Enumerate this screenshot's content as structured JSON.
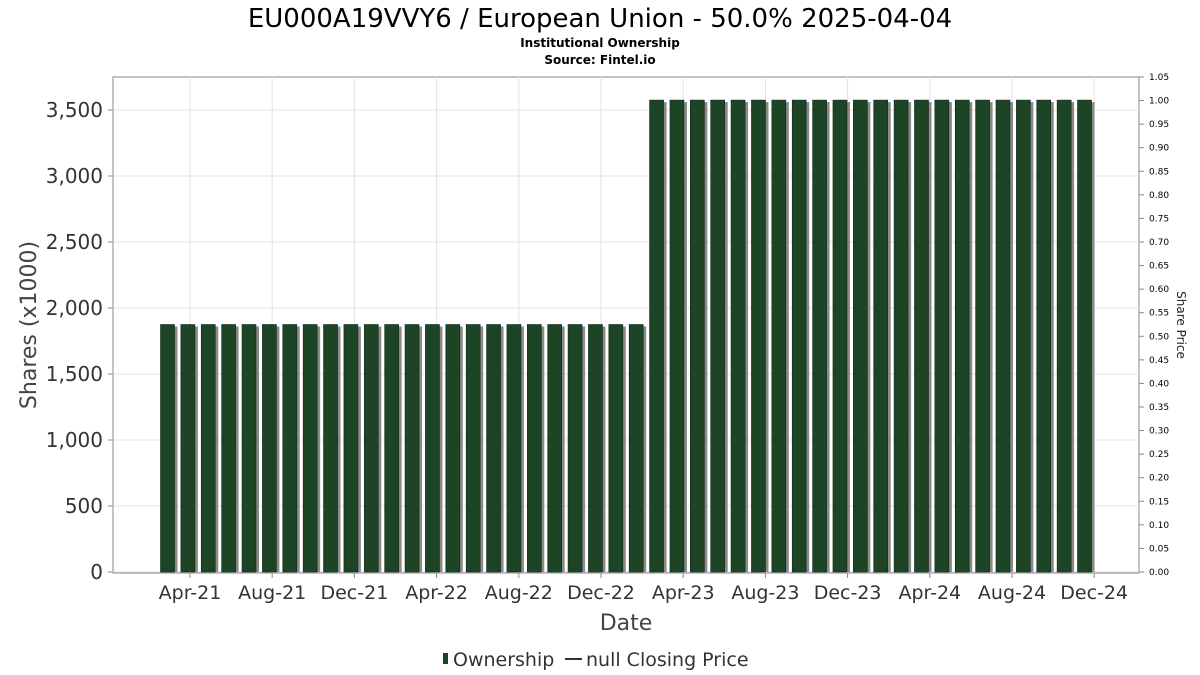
{
  "chart_data": {
    "type": "bar",
    "title": "EU000A19VVY6 / European Union - 50.0% 2025-04-04",
    "subtitles": [
      "Institutional Ownership",
      "Source: Fintel.io"
    ],
    "xlabel": "Date",
    "ylabel": "Shares (x1000)",
    "y2label": "Share Price",
    "ylim": [
      0,
      3750
    ],
    "y2lim": [
      0,
      1.05
    ],
    "yticks": [
      "0",
      "500",
      "1,000",
      "1,500",
      "2,000",
      "2,500",
      "3,000",
      "3,500"
    ],
    "ytick_values": [
      0,
      500,
      1000,
      1500,
      2000,
      2500,
      3000,
      3500
    ],
    "y2ticks": [
      "0.00",
      "0.05",
      "0.10",
      "0.15",
      "0.20",
      "0.25",
      "0.30",
      "0.35",
      "0.40",
      "0.45",
      "0.50",
      "0.55",
      "0.60",
      "0.65",
      "0.70",
      "0.75",
      "0.80",
      "0.85",
      "0.90",
      "0.95",
      "1.00",
      "1.05"
    ],
    "xticks": [
      "Apr-21",
      "Aug-21",
      "Dec-21",
      "Apr-22",
      "Aug-22",
      "Dec-22",
      "Apr-23",
      "Aug-23",
      "Dec-23",
      "Apr-24",
      "Aug-24",
      "Dec-24"
    ],
    "grid": true,
    "legend_position": "bottom",
    "series": [
      {
        "name": "Ownership",
        "color": "#1e4426",
        "values": [
          1875,
          1875,
          1875,
          1875,
          1875,
          1875,
          1875,
          1875,
          1875,
          1875,
          1875,
          1875,
          1875,
          1875,
          1875,
          1875,
          1875,
          1875,
          1875,
          1875,
          1875,
          1875,
          1875,
          1875,
          3575,
          3575,
          3575,
          3575,
          3575,
          3575,
          3575,
          3575,
          3575,
          3575,
          3575,
          3575,
          3575,
          3575,
          3575,
          3575,
          3575,
          3575,
          3575,
          3575,
          3575,
          3575
        ]
      },
      {
        "name": "null Closing Price",
        "color": "#333333",
        "values": []
      }
    ]
  }
}
